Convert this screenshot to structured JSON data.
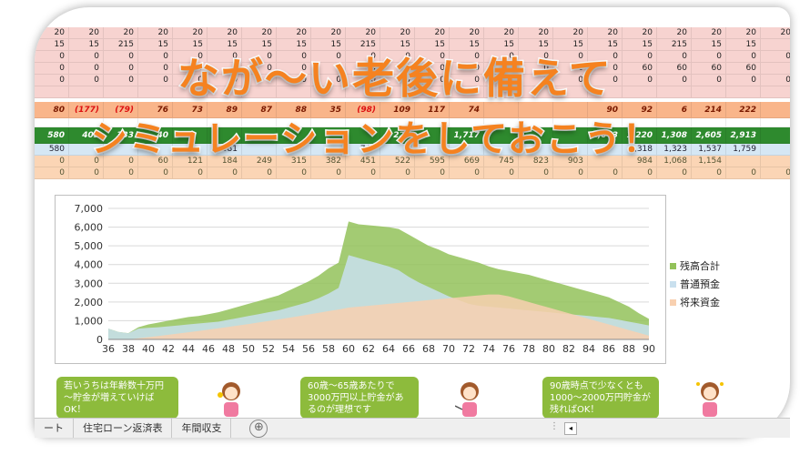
{
  "title_line1": "なが～い老後に備えて",
  "title_line2": "シミュレーションをしておこう！",
  "rows": {
    "r1": [
      "20",
      "20",
      "20",
      "20",
      "20",
      "20",
      "20",
      "20",
      "20",
      "20",
      "20",
      "20",
      "20",
      "20",
      "20",
      "20",
      "20",
      "20",
      "20",
      "20",
      "20",
      "20"
    ],
    "r2": [
      "15",
      "15",
      "215",
      "15",
      "15",
      "15",
      "15",
      "15",
      "15",
      "215",
      "15",
      "15",
      "15",
      "15",
      "15",
      "15",
      "15",
      "15",
      "215",
      "15",
      "15",
      ""
    ],
    "r3": [
      "0",
      "0",
      "0",
      "0",
      "0",
      "0",
      "0",
      "0",
      "0",
      "0",
      "0",
      "0",
      "0",
      "0",
      "0",
      "0",
      "0",
      "0",
      "0",
      "0",
      "0",
      "0"
    ],
    "r4": [
      "0",
      "0",
      "0",
      "0",
      "0",
      "0",
      "0",
      "0",
      "0",
      "0",
      "0",
      "0",
      "60",
      "0",
      "0",
      "0",
      "0",
      "60",
      "60",
      "60",
      "60",
      ""
    ],
    "r5": [
      "0",
      "0",
      "0",
      "0",
      "0",
      "0",
      "0",
      "0",
      "0",
      "0",
      "0",
      "0",
      "0",
      "0",
      "0",
      "0",
      "0",
      "0",
      "0",
      "0",
      "0",
      "0"
    ],
    "orange": [
      "80",
      "(177)",
      "(79)",
      "76",
      "73",
      "89",
      "87",
      "88",
      "35",
      "(98)",
      "109",
      "117",
      "74",
      "",
      "",
      "",
      "90",
      "92",
      "6",
      "214",
      "222",
      ""
    ],
    "green": [
      "580",
      "403",
      "333",
      "40",
      "",
      "",
      "",
      "",
      "",
      "",
      "227",
      "",
      "1,717",
      "",
      "",
      "",
      "1,043",
      "1,220",
      "1,308",
      "2,605",
      "2,913",
      ""
    ],
    "blue": [
      "580",
      "",
      "",
      "",
      "",
      "581",
      "",
      "",
      "",
      "747",
      "",
      "",
      "",
      "",
      "",
      "",
      "",
      "1,318",
      "1,323",
      "1,537",
      "1,759",
      ""
    ],
    "peach": [
      "0",
      "0",
      "0",
      "60",
      "121",
      "184",
      "249",
      "315",
      "382",
      "451",
      "522",
      "595",
      "669",
      "745",
      "823",
      "903",
      "",
      "984",
      "1,068",
      "1,154",
      "",
      ""
    ],
    "zero": [
      "0",
      "0",
      "0",
      "0",
      "0",
      "0",
      "0",
      "0",
      "0",
      "0",
      "0",
      "0",
      "0",
      "0",
      "0",
      "0",
      "0",
      "0",
      "0",
      "0",
      "0",
      "0"
    ]
  },
  "chart_data": {
    "type": "area",
    "x": [
      36,
      37,
      38,
      39,
      40,
      41,
      42,
      43,
      44,
      45,
      46,
      47,
      48,
      49,
      50,
      51,
      52,
      53,
      54,
      55,
      56,
      57,
      58,
      59,
      60,
      61,
      62,
      63,
      64,
      65,
      66,
      67,
      68,
      69,
      70,
      71,
      72,
      73,
      74,
      75,
      76,
      77,
      78,
      79,
      80,
      81,
      82,
      83,
      84,
      85,
      86,
      87,
      88,
      89,
      90
    ],
    "y_ticks": [
      "0",
      "1,000",
      "2,000",
      "3,000",
      "4,000",
      "5,000",
      "6,000",
      "7,000"
    ],
    "x_ticks": [
      "36",
      "38",
      "40",
      "42",
      "44",
      "46",
      "48",
      "50",
      "52",
      "54",
      "56",
      "58",
      "60",
      "62",
      "64",
      "66",
      "68",
      "70",
      "72",
      "74",
      "76",
      "78",
      "80",
      "82",
      "84",
      "86",
      "88",
      "90"
    ],
    "ylim": [
      0,
      7000
    ],
    "series": [
      {
        "name": "残高合計",
        "color": "#93c25a",
        "values": [
          580,
          403,
          333,
          650,
          800,
          900,
          1000,
          1100,
          1200,
          1250,
          1350,
          1450,
          1600,
          1750,
          1900,
          2050,
          2200,
          2350,
          2600,
          2850,
          3100,
          3400,
          3800,
          4100,
          6300,
          6150,
          6100,
          6050,
          6000,
          5900,
          5600,
          5300,
          5000,
          4800,
          4550,
          4400,
          4250,
          4100,
          3900,
          3750,
          3650,
          3550,
          3450,
          3300,
          3150,
          3000,
          2850,
          2700,
          2550,
          2400,
          2250,
          2000,
          1750,
          1400,
          1100
        ]
      },
      {
        "name": "普通預金",
        "color": "#c9e0ee",
        "values": [
          580,
          400,
          330,
          580,
          620,
          650,
          700,
          750,
          800,
          850,
          900,
          950,
          1050,
          1150,
          1250,
          1350,
          1450,
          1550,
          1700,
          1850,
          2000,
          2200,
          2450,
          2750,
          4500,
          4350,
          4200,
          4050,
          3900,
          3700,
          3350,
          3050,
          2800,
          2550,
          2300,
          2100,
          1900,
          1800,
          1750,
          1700,
          1650,
          1600,
          1550,
          1500,
          1450,
          1400,
          1350,
          1300,
          1250,
          1200,
          1150,
          1050,
          950,
          850,
          750
        ]
      },
      {
        "name": "将来資金",
        "color": "#f8d0b0",
        "values": [
          0,
          0,
          0,
          60,
          121,
          184,
          249,
          315,
          382,
          451,
          522,
          595,
          669,
          745,
          823,
          903,
          984,
          1068,
          1154,
          1240,
          1330,
          1420,
          1510,
          1600,
          1700,
          1750,
          1800,
          1850,
          1900,
          1950,
          2000,
          2050,
          2100,
          2150,
          2200,
          2250,
          2300,
          2350,
          2400,
          2400,
          2300,
          2150,
          2000,
          1850,
          1700,
          1550,
          1400,
          1250,
          1100,
          950,
          800,
          650,
          500,
          350,
          200
        ]
      }
    ],
    "legend_position": "right"
  },
  "bubbles": [
    "若いうちは年齢数十万円～貯金が増えていけばOK！",
    "60歳～65歳あたりで3000万円以上貯金があるのが理想です",
    "90歳時点で少なくとも1000～2000万円貯金が残ればOK！"
  ],
  "tabs": [
    "ート",
    "住宅ローン返済表",
    "年間収支"
  ],
  "tab_add": "⊕",
  "scroll_arrow": "◂",
  "dots": "⋮"
}
